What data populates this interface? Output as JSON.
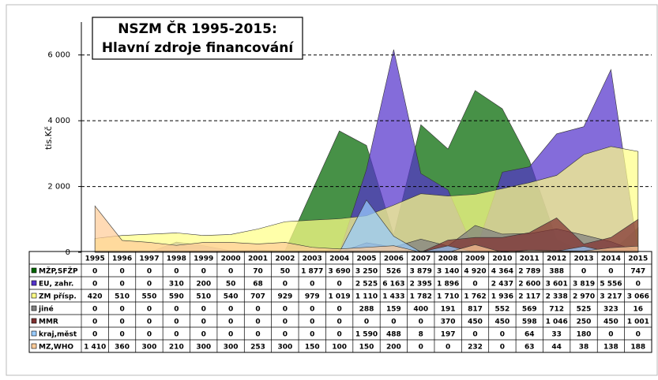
{
  "chart_data": {
    "type": "area",
    "title": "NSZM ČR 1995-2015:",
    "subtitle": "Hlavní zdroje financování",
    "y_label": "tis.Kč",
    "categories": [
      "1995",
      "1996",
      "1997",
      "1998",
      "1999",
      "2000",
      "2001",
      "2002",
      "2003",
      "2004",
      "2005",
      "2006",
      "2007",
      "2008",
      "2009",
      "2010",
      "2011",
      "2012",
      "2013",
      "2014",
      "2015"
    ],
    "ylim": [
      0,
      7000
    ],
    "yticks": [
      0,
      {
        "value": 2000,
        "label": "2 000"
      },
      {
        "value": 4000,
        "label": "4 000"
      },
      {
        "value": 6000,
        "label": "6 000"
      }
    ],
    "grid": true,
    "series": [
      {
        "name": "MŽP,SFŽP",
        "color": "#006600",
        "values": [
          0,
          0,
          0,
          0,
          0,
          0,
          70,
          50,
          1877,
          3690,
          3250,
          526,
          3879,
          3140,
          4920,
          4364,
          2789,
          388,
          0,
          0,
          747
        ],
        "value_labels": [
          "0",
          "0",
          "0",
          "0",
          "0",
          "0",
          "70",
          "50",
          "1 877",
          "3 690",
          "3 250",
          "526",
          "3 879",
          "3 140",
          "4 920",
          "4 364",
          "2 789",
          "388",
          "0",
          "0",
          "747"
        ]
      },
      {
        "name": "EU, zahr.",
        "color": "#5533cc",
        "values": [
          0,
          0,
          0,
          310,
          200,
          50,
          68,
          0,
          0,
          0,
          2525,
          6163,
          2395,
          1896,
          0,
          2437,
          2600,
          3601,
          3819,
          5556,
          0
        ],
        "value_labels": [
          "0",
          "0",
          "0",
          "310",
          "200",
          "50",
          "68",
          "0",
          "0",
          "0",
          "2 525",
          "6 163",
          "2 395",
          "1 896",
          "0",
          "2 437",
          "2 600",
          "3 601",
          "3 819",
          "5 556",
          "0"
        ]
      },
      {
        "name": "ZM přísp.",
        "color": "#ffff88",
        "values": [
          420,
          510,
          550,
          590,
          510,
          540,
          707,
          929,
          979,
          1019,
          1110,
          1433,
          1782,
          1710,
          1762,
          1936,
          2117,
          2338,
          2970,
          3217,
          3066
        ],
        "value_labels": [
          "420",
          "510",
          "550",
          "590",
          "510",
          "540",
          "707",
          "929",
          "979",
          "1 019",
          "1 110",
          "1 433",
          "1 782",
          "1 710",
          "1 762",
          "1 936",
          "2 117",
          "2 338",
          "2 970",
          "3 217",
          "3 066"
        ]
      },
      {
        "name": "jiné",
        "color": "#808080",
        "values": [
          0,
          0,
          0,
          0,
          0,
          0,
          0,
          0,
          0,
          0,
          288,
          159,
          400,
          191,
          817,
          552,
          569,
          712,
          525,
          323,
          16
        ],
        "value_labels": [
          "0",
          "0",
          "0",
          "0",
          "0",
          "0",
          "0",
          "0",
          "0",
          "0",
          "288",
          "159",
          "400",
          "191",
          "817",
          "552",
          "569",
          "712",
          "525",
          "323",
          "16"
        ]
      },
      {
        "name": "MMR",
        "color": "#803030",
        "values": [
          0,
          0,
          0,
          0,
          0,
          0,
          0,
          0,
          0,
          0,
          0,
          0,
          0,
          370,
          450,
          450,
          598,
          1046,
          250,
          450,
          1001
        ],
        "value_labels": [
          "0",
          "0",
          "0",
          "0",
          "0",
          "0",
          "0",
          "0",
          "0",
          "0",
          "0",
          "0",
          "0",
          "370",
          "450",
          "450",
          "598",
          "1 046",
          "250",
          "450",
          "1 001"
        ]
      },
      {
        "name": "kraj,měst",
        "color": "#99ccff",
        "values": [
          0,
          0,
          0,
          0,
          0,
          0,
          0,
          0,
          0,
          0,
          1590,
          488,
          8,
          197,
          0,
          0,
          64,
          33,
          180,
          0,
          0
        ],
        "value_labels": [
          "0",
          "0",
          "0",
          "0",
          "0",
          "0",
          "0",
          "0",
          "0",
          "0",
          "1 590",
          "488",
          "8",
          "197",
          "0",
          "0",
          "64",
          "33",
          "180",
          "0",
          "0"
        ]
      },
      {
        "name": "MZ,WHO",
        "color": "#ffcc99",
        "values": [
          1410,
          360,
          300,
          210,
          300,
          300,
          253,
          300,
          150,
          100,
          150,
          200,
          0,
          0,
          232,
          0,
          63,
          44,
          38,
          138,
          188
        ],
        "value_labels": [
          "1 410",
          "360",
          "300",
          "210",
          "300",
          "300",
          "253",
          "300",
          "150",
          "100",
          "150",
          "200",
          "0",
          "0",
          "232",
          "0",
          "63",
          "44",
          "38",
          "138",
          "188"
        ]
      }
    ]
  }
}
